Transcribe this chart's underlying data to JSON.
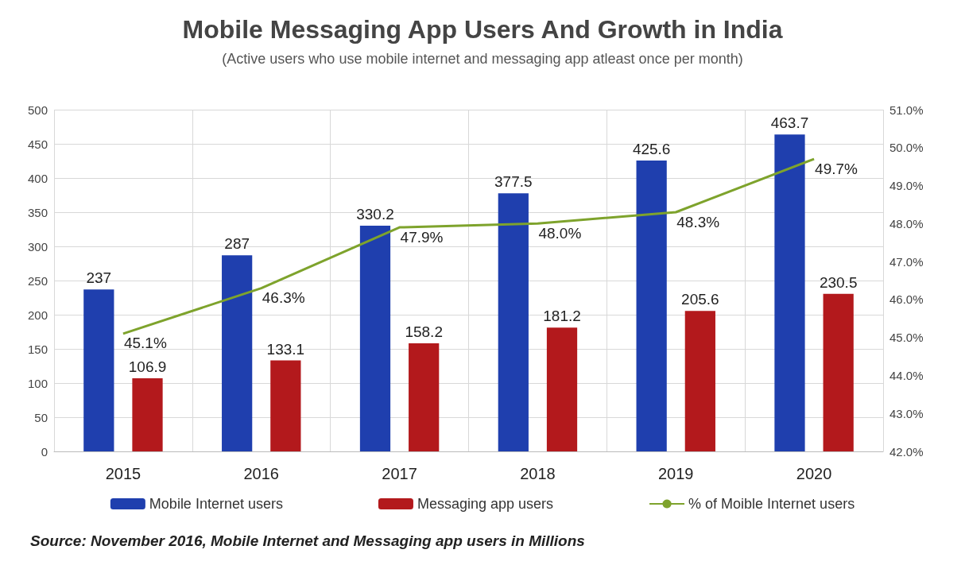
{
  "chart_data": {
    "type": "bar",
    "title": "Mobile Messaging App Users And Growth in India",
    "subtitle": "(Active users who use mobile internet and messaging app atleast once per month)",
    "annotations": [
      "Source: November 2016, Mobile Internet and Messaging app users in Millions"
    ],
    "categories": [
      "2015",
      "2016",
      "2017",
      "2018",
      "2019",
      "2020"
    ],
    "series": [
      {
        "name": "Mobile Internet users",
        "color": "#1f3fae",
        "values": [
          237,
          287,
          330.2,
          377.5,
          425.6,
          463.7
        ]
      },
      {
        "name": "Messaging app users",
        "color": "#b3191c",
        "values": [
          106.9,
          133.1,
          158.2,
          181.2,
          205.6,
          230.5
        ]
      },
      {
        "name": "% of Moible Internet users",
        "type": "line",
        "axis": "y2",
        "color": "#7ea32c",
        "values": [
          45.1,
          46.3,
          47.9,
          48.0,
          48.3,
          49.7
        ],
        "value_labels": [
          "45.1%",
          "46.3%",
          "47.9%",
          "48.0%",
          "48.3%",
          "49.7%"
        ]
      }
    ],
    "ylim": [
      0,
      500
    ],
    "yticks": [
      0,
      50,
      100,
      150,
      200,
      250,
      300,
      350,
      400,
      450,
      500
    ],
    "y2lim": [
      42,
      51
    ],
    "y2ticks": [
      {
        "value": 42,
        "label": "42.0%"
      },
      {
        "value": 43,
        "label": "43.0%"
      },
      {
        "value": 44,
        "label": "44.0%"
      },
      {
        "value": 45,
        "label": "45.0%"
      },
      {
        "value": 46,
        "label": "46.0%"
      },
      {
        "value": 47,
        "label": "47.0%"
      },
      {
        "value": 48,
        "label": "48.0%"
      },
      {
        "value": 49,
        "label": "49.0%"
      },
      {
        "value": 50,
        "label": "50.0%"
      },
      {
        "value": 51,
        "label": "51.0%"
      }
    ],
    "data_labels": true,
    "grid": true,
    "legend": "bottom",
    "marker": "none",
    "line_style": "solid"
  }
}
